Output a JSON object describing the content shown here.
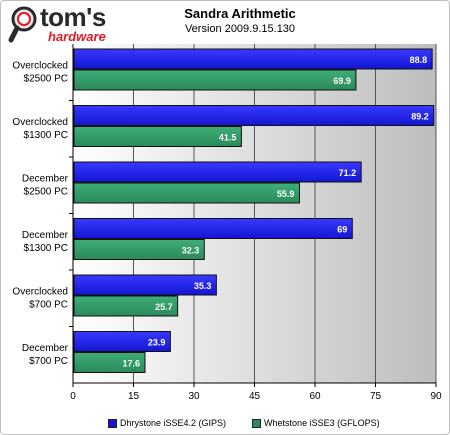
{
  "header": {
    "title": "Sandra Arithmetic",
    "subtitle": "Version 2009.9.15.130",
    "brand_name": "tom's",
    "brand_tag": "hardware"
  },
  "colors": {
    "series1": "#1414d2",
    "series2": "#2a8a5a",
    "plot_bg_left": "#ffffff",
    "plot_bg_right": "#bdbdbd"
  },
  "chart_data": {
    "type": "bar",
    "orientation": "horizontal",
    "title": "Sandra Arithmetic",
    "subtitle": "Version 2009.9.15.130",
    "categories": [
      [
        "Overclocked",
        "$2500 PC"
      ],
      [
        "Overclocked",
        "$1300 PC"
      ],
      [
        "December",
        "$2500 PC"
      ],
      [
        "December",
        "$1300 PC"
      ],
      [
        "Overclocked",
        "$700 PC"
      ],
      [
        "December",
        "$700 PC"
      ]
    ],
    "series": [
      {
        "name": "Dhrystone iSSE4.2 (GIPS)",
        "values": [
          88.8,
          89.2,
          71.2,
          69,
          35.3,
          23.9
        ]
      },
      {
        "name": "Whetstone iSSE3 (GFLOPS)",
        "values": [
          69.9,
          41.5,
          55.9,
          32.3,
          25.7,
          17.6
        ]
      }
    ],
    "xlim": [
      0,
      90
    ],
    "xticks": [
      0,
      15,
      30,
      45,
      60,
      75,
      90
    ],
    "grid": true,
    "legend_position": "bottom"
  }
}
